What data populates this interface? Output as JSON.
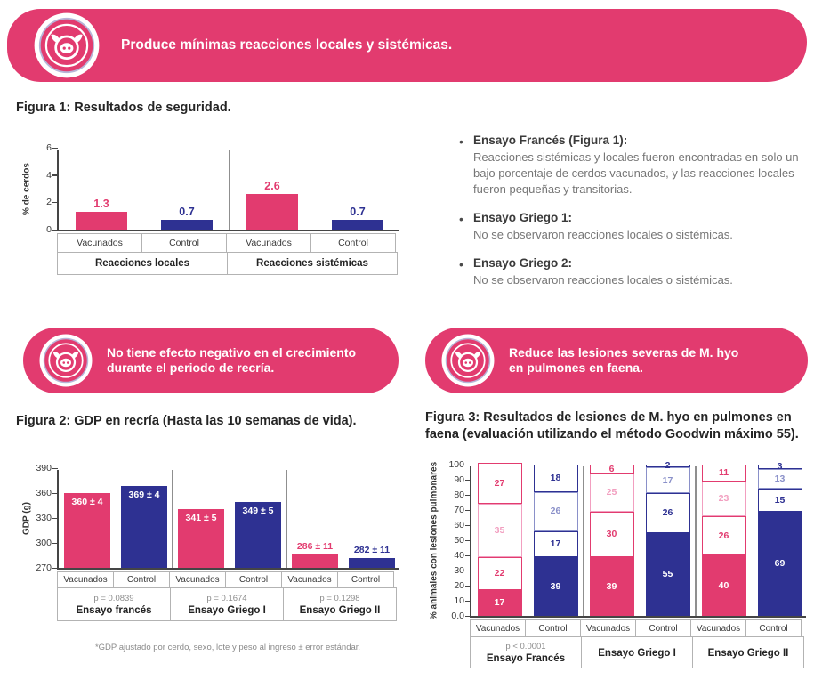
{
  "colors": {
    "pink": "#E23B6F",
    "pink_light": "#F29FC0",
    "navy": "#2E3192",
    "navy_light": "#8A90C9"
  },
  "banners": {
    "top": "Produce mínimas reacciones locales y sistémicas.",
    "growth": "No tiene efecto negativo en el crecimiento durante el periodo de recría.",
    "lesions": "Reduce las lesiones severas de M. hyo en pulmones en faena."
  },
  "bullets": [
    {
      "title": "Ensayo Francés (Figura 1):",
      "text": "Reacciones sistémicas y locales fueron encontradas en solo un bajo porcentaje de cerdos vacunados, y las reacciones locales fueron pequeñas y transitorias."
    },
    {
      "title": "Ensayo Griego 1:",
      "text": "No se observaron reacciones locales o sistémicas."
    },
    {
      "title": "Ensayo Griego 2:",
      "text": "No se observaron reacciones locales o sistémicas."
    }
  ],
  "chart_data": [
    {
      "id": "figura1",
      "type": "bar",
      "title": "Figura 1: Resultados de seguridad.",
      "ylabel": "% de cerdos",
      "ylim": [
        0,
        6
      ],
      "yticks": [
        0,
        2,
        4,
        6
      ],
      "series_labels": [
        "Vacunados",
        "Control"
      ],
      "series_colors": [
        "#E23B6F",
        "#2E3192"
      ],
      "groups": [
        {
          "label": "Reacciones locales",
          "values": [
            1.3,
            0.7
          ]
        },
        {
          "label": "Reacciones sistémicas",
          "values": [
            2.6,
            0.7
          ]
        }
      ]
    },
    {
      "id": "figura2",
      "type": "bar",
      "title": "Figura 2: GDP en recría (Hasta las 10 semanas de vida).",
      "ylabel": "GDP (g)",
      "ylim": [
        270,
        390
      ],
      "yticks": [
        270,
        300,
        330,
        360,
        390
      ],
      "series_labels": [
        "Vacunados",
        "Control"
      ],
      "series_colors": [
        "#E23B6F",
        "#2E3192"
      ],
      "groups": [
        {
          "label": "Ensayo francés",
          "p": "p = 0.0839",
          "values": [
            360,
            369
          ],
          "displays": [
            "360 ± 4",
            "369 ± 4"
          ]
        },
        {
          "label": "Ensayo Griego I",
          "p": "p = 0.1674",
          "values": [
            341,
            349
          ],
          "displays": [
            "341 ± 5",
            "349 ± 5"
          ]
        },
        {
          "label": "Ensayo Griego II",
          "p": "p = 0.1298",
          "values": [
            286,
            282
          ],
          "displays": [
            "286 ± 11",
            "282 ± 11"
          ]
        }
      ],
      "footnote": "*GDP ajustado por cerdo, sexo, lote y peso al ingreso ± error estándar."
    },
    {
      "id": "figura3",
      "type": "stacked-bar",
      "title": "Figura 3: Resultados de lesiones de M. hyo en pulmones en faena (evaluación utilizando el método Goodwin máximo 55).",
      "ylabel": "% animales con lesiones pulmonares",
      "ylim": [
        0,
        100
      ],
      "yticks": [
        "0.0",
        "10",
        "20",
        "30",
        "40",
        "50",
        "60",
        "70",
        "80",
        "90",
        "100"
      ],
      "series_labels": [
        "Vacunados",
        "Control"
      ],
      "series_colors": [
        "#E23B6F",
        "#2E3192"
      ],
      "segments_order": "bottom-to-top",
      "groups": [
        {
          "label": "Ensayo Francés",
          "p": "p < 0.0001",
          "vacunados": [
            17,
            22,
            35,
            27
          ],
          "control": [
            39,
            17,
            26,
            18
          ]
        },
        {
          "label": "Ensayo Griego I",
          "p": "",
          "vacunados": [
            39,
            30,
            25,
            6
          ],
          "control": [
            55,
            26,
            17,
            2
          ]
        },
        {
          "label": "Ensayo Griego II",
          "p": "",
          "vacunados": [
            40,
            26,
            23,
            11
          ],
          "control": [
            69,
            15,
            13,
            3
          ]
        }
      ]
    }
  ]
}
